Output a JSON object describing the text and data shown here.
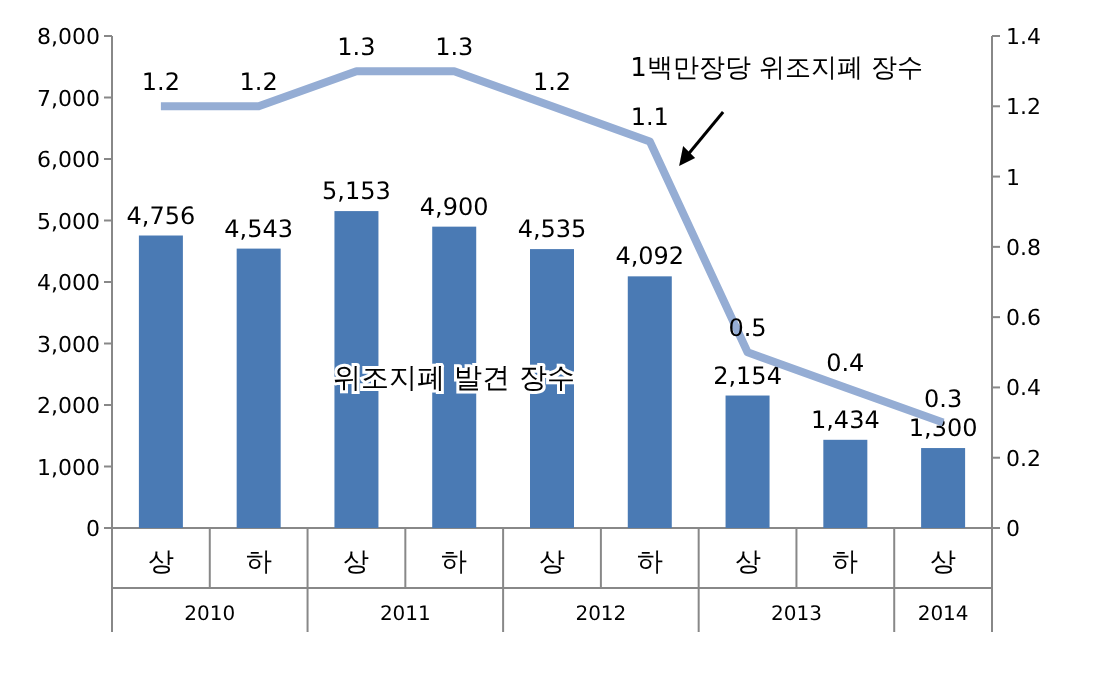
{
  "chart_data": {
    "type": "bar",
    "categories": [
      "상",
      "하",
      "상",
      "하",
      "상",
      "하",
      "상",
      "하",
      "상"
    ],
    "annotations": [
      "2010",
      "2011",
      "2012",
      "2013",
      "2014"
    ],
    "series": [
      {
        "name": "위조지폐 발견 장수",
        "color": "#4a7ab4",
        "values": [
          4756,
          4543,
          5153,
          4900,
          4535,
          4092,
          2154,
          1434,
          1300
        ],
        "value_labels": [
          "4,756",
          "4,543",
          "5,153",
          "4,900",
          "4,535",
          "4,092",
          "2,154",
          "1,434",
          "1,300"
        ]
      },
      {
        "name": "1백만장당 위조지폐 장수",
        "type": "line",
        "axis": "y2",
        "color": "#95add4",
        "values": [
          1.2,
          1.2,
          1.3,
          1.3,
          1.2,
          1.1,
          0.5,
          0.4,
          0.3
        ],
        "value_labels": [
          "1.2",
          "1.2",
          "1.3",
          "1.3",
          "1.2",
          "1.1",
          "0.5",
          "0.4",
          "0.3"
        ]
      }
    ],
    "ylim": [
      0,
      8000
    ],
    "yticks": [
      0,
      {
        "value": 1000,
        "label": "1,000"
      },
      {
        "value": 2000,
        "label": "2,000"
      },
      {
        "value": 3000,
        "label": "3,000"
      },
      {
        "value": 4000,
        "label": "4,000"
      },
      {
        "value": 5000,
        "label": "5,000"
      },
      {
        "value": 6000,
        "label": "6,000"
      },
      {
        "value": 7000,
        "label": "7,000"
      },
      {
        "value": 8000,
        "label": "8,000"
      }
    ],
    "y2lim": [
      0,
      1.4
    ],
    "y2ticks": [
      0,
      0.2,
      0.4,
      0.6,
      0.8,
      1,
      1.2,
      1.4
    ],
    "grid": false,
    "marker": "none",
    "line_style": "solid"
  }
}
